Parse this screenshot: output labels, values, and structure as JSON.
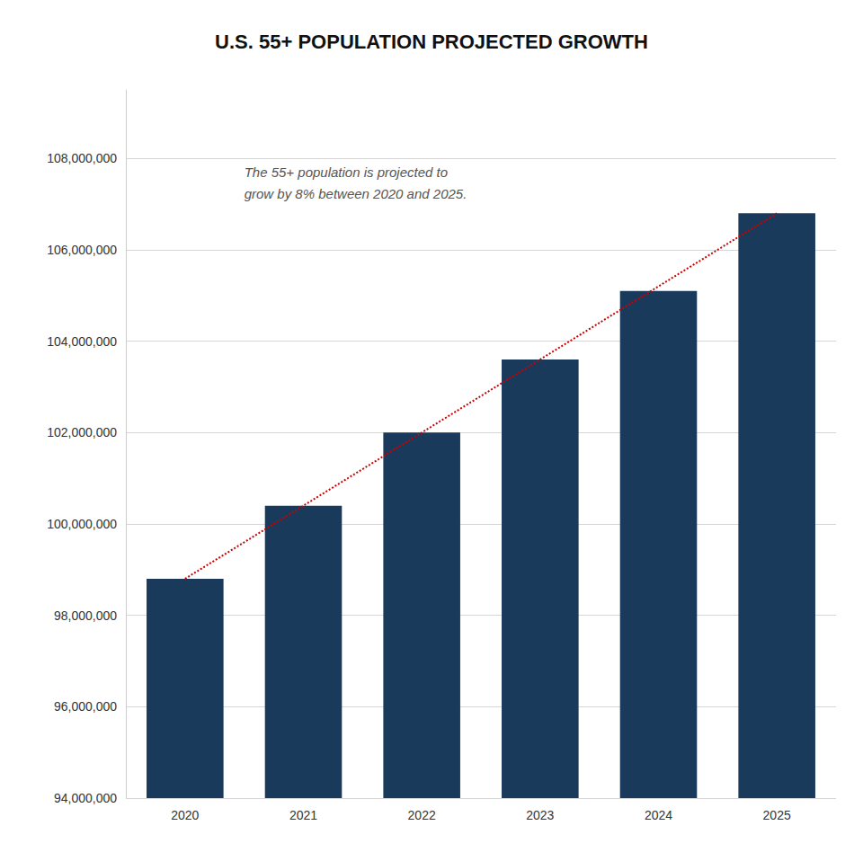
{
  "chart_data": {
    "type": "bar",
    "title": "U.S. 55+ POPULATION PROJECTED GROWTH",
    "categories": [
      "2020",
      "2021",
      "2022",
      "2023",
      "2024",
      "2025"
    ],
    "series": [
      {
        "type": "bar",
        "color": "#1a3a5c",
        "values": [
          98800000,
          100400000,
          102000000,
          103600000,
          105100000,
          106800000
        ]
      },
      {
        "type": "line",
        "color": "#cc0000",
        "line_style": "dotted",
        "values": [
          98800000,
          null,
          null,
          null,
          null,
          106800000
        ]
      }
    ],
    "annotations": [
      "The 55+ population is projected to",
      "grow by 8% between 2020 and 2025."
    ],
    "annotation_color": "#555555",
    "ylim": [
      94000000,
      109500000
    ],
    "yticks": [
      {
        "value": 94000000,
        "label": "94,000,000"
      },
      {
        "value": 96000000,
        "label": "96,000,000"
      },
      {
        "value": 98000000,
        "label": "98,000,000"
      },
      {
        "value": 100000000,
        "label": "100,000,000"
      },
      {
        "value": 102000000,
        "label": "102,000,000"
      },
      {
        "value": 104000000,
        "label": "104,000,000"
      },
      {
        "value": 106000000,
        "label": "106,000,000"
      },
      {
        "value": 108000000,
        "label": "108,000,000"
      }
    ],
    "grid": true
  }
}
